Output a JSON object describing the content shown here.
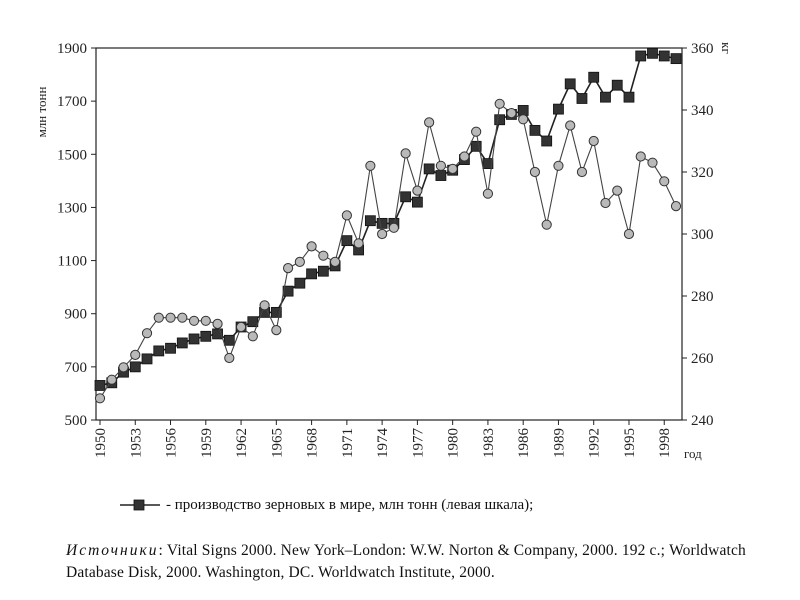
{
  "chart_data": {
    "type": "line",
    "ylabel_left": "млн тонн",
    "ylabel_right": "кг",
    "xlabel": "год",
    "ylim_left": [
      500,
      1900
    ],
    "yticks_left": [
      500,
      700,
      900,
      1100,
      1300,
      1500,
      1700,
      1900
    ],
    "ylim_right": [
      240,
      360
    ],
    "yticks_right": [
      240,
      260,
      280,
      300,
      320,
      340,
      360
    ],
    "xticks": [
      1950,
      1953,
      1956,
      1959,
      1962,
      1965,
      1968,
      1971,
      1974,
      1977,
      1980,
      1983,
      1986,
      1989,
      1992,
      1995,
      1998
    ],
    "x": [
      1950,
      1951,
      1952,
      1953,
      1954,
      1955,
      1956,
      1957,
      1958,
      1959,
      1960,
      1961,
      1962,
      1963,
      1964,
      1965,
      1966,
      1967,
      1968,
      1969,
      1970,
      1971,
      1972,
      1973,
      1974,
      1975,
      1976,
      1977,
      1978,
      1979,
      1980,
      1981,
      1982,
      1983,
      1984,
      1985,
      1986,
      1987,
      1988,
      1989,
      1990,
      1991,
      1992,
      1993,
      1994,
      1995,
      1996,
      1997,
      1998,
      1999
    ],
    "series": [
      {
        "name": "производство зерновых в мире, млн тонн (левая шкала)",
        "axis": "left",
        "marker": "square",
        "values": [
          630,
          640,
          680,
          700,
          730,
          760,
          770,
          790,
          805,
          815,
          824,
          800,
          850,
          870,
          905,
          905,
          985,
          1015,
          1050,
          1060,
          1080,
          1175,
          1140,
          1250,
          1240,
          1240,
          1340,
          1320,
          1445,
          1420,
          1440,
          1480,
          1530,
          1465,
          1630,
          1650,
          1665,
          1590,
          1550,
          1670,
          1765,
          1710,
          1790,
          1715,
          1760,
          1715,
          1870,
          1880,
          1870,
          1860
        ]
      },
      {
        "name": "",
        "axis": "right",
        "marker": "circle",
        "values": [
          247,
          253,
          257,
          261,
          268,
          273,
          273,
          273,
          272,
          272,
          271,
          260,
          270,
          267,
          277,
          269,
          289,
          291,
          296,
          293,
          291,
          306,
          297,
          322,
          300,
          302,
          326,
          314,
          336,
          322,
          321,
          325,
          333,
          313,
          342,
          339,
          337,
          320,
          303,
          322,
          335,
          320,
          330,
          310,
          314,
          300,
          325,
          323,
          317,
          309
        ]
      }
    ]
  },
  "legend": {
    "label": "- производство зерновых в мире, млн тонн (левая шкала);"
  },
  "sources": {
    "label": "Источники",
    "text": ": Vital Signs 2000. New York–London: W.W. Norton & Company, 2000. 192 с.; Worldwatch Database Disk, 2000. Washington, DC. Worldwatch Institute, 2000."
  }
}
